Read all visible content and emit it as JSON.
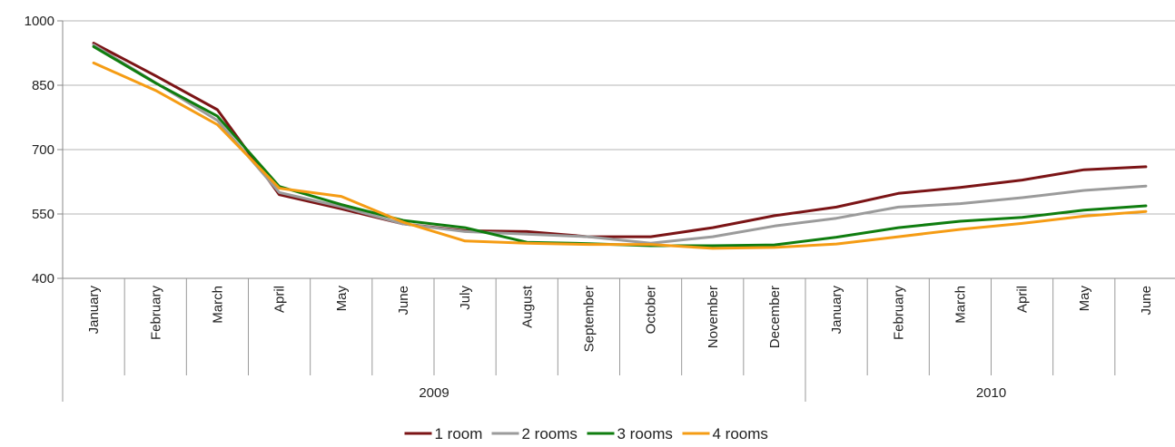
{
  "chart_data": {
    "type": "line",
    "ylim": [
      400,
      1000
    ],
    "yticks": [
      400,
      550,
      700,
      850,
      1000
    ],
    "categories": [
      "January",
      "February",
      "March",
      "April",
      "May",
      "June",
      "July",
      "August",
      "September",
      "October",
      "November",
      "December",
      "January",
      "February",
      "March",
      "April",
      "May",
      "June"
    ],
    "year_groups": [
      {
        "label": "2009",
        "span": 12
      },
      {
        "label": "2010",
        "span": 6
      }
    ],
    "series": [
      {
        "name": "1 room",
        "color": "#7b1416",
        "values": [
          948,
          872,
          793,
          595,
          562,
          527,
          511,
          509,
          497,
          497,
          518,
          546,
          566,
          598,
          612,
          629,
          653,
          660
        ]
      },
      {
        "name": "2 rooms",
        "color": "#9b9b9b",
        "values": [
          944,
          856,
          768,
          600,
          567,
          527,
          509,
          503,
          497,
          482,
          497,
          522,
          540,
          566,
          574,
          588,
          605,
          615
        ]
      },
      {
        "name": "3 rooms",
        "color": "#0f7d0f",
        "values": [
          940,
          855,
          778,
          614,
          572,
          535,
          518,
          484,
          481,
          476,
          476,
          478,
          496,
          518,
          533,
          542,
          559,
          569
        ]
      },
      {
        "name": "4 rooms",
        "color": "#f59c14",
        "values": [
          902,
          838,
          758,
          610,
          591,
          531,
          487,
          482,
          479,
          479,
          470,
          472,
          480,
          497,
          514,
          528,
          545,
          556
        ]
      }
    ],
    "grid": true,
    "legend_position": "bottom"
  }
}
